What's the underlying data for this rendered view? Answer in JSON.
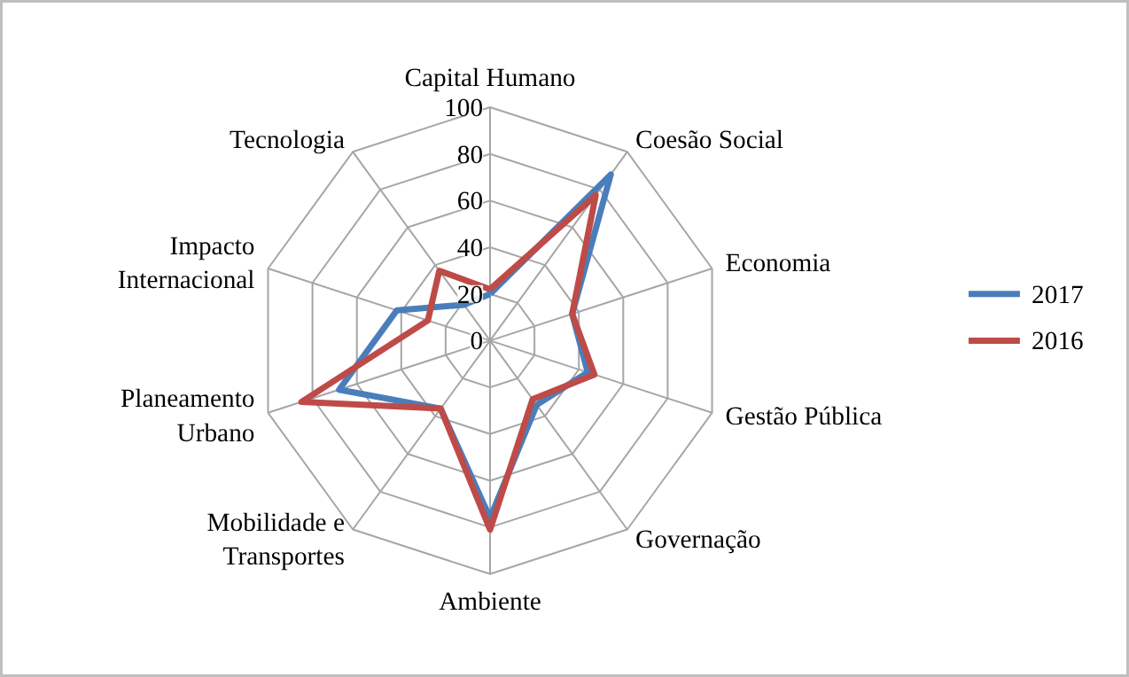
{
  "chart_data": {
    "type": "radar",
    "categories": [
      "Capital Humano",
      "Coesão Social",
      "Economia",
      "Gestão Pública",
      "Governação",
      "Ambiente",
      "Mobilidade e Transportes",
      "Planeamento Urbano",
      "Impacto Internacional",
      "Tecnologia"
    ],
    "series": [
      {
        "name": "2017",
        "color": "#4a7ebb",
        "values": [
          20,
          88,
          37,
          44,
          34,
          76,
          36,
          68,
          42,
          19
        ]
      },
      {
        "name": "2016",
        "color": "#be4b48",
        "values": [
          22,
          77,
          37,
          47,
          31,
          81,
          36,
          85,
          28,
          37
        ]
      }
    ],
    "ylim": [
      0,
      100
    ],
    "yticks": [
      0,
      20,
      40,
      60,
      80,
      100
    ],
    "grid": true,
    "legend": "right"
  }
}
